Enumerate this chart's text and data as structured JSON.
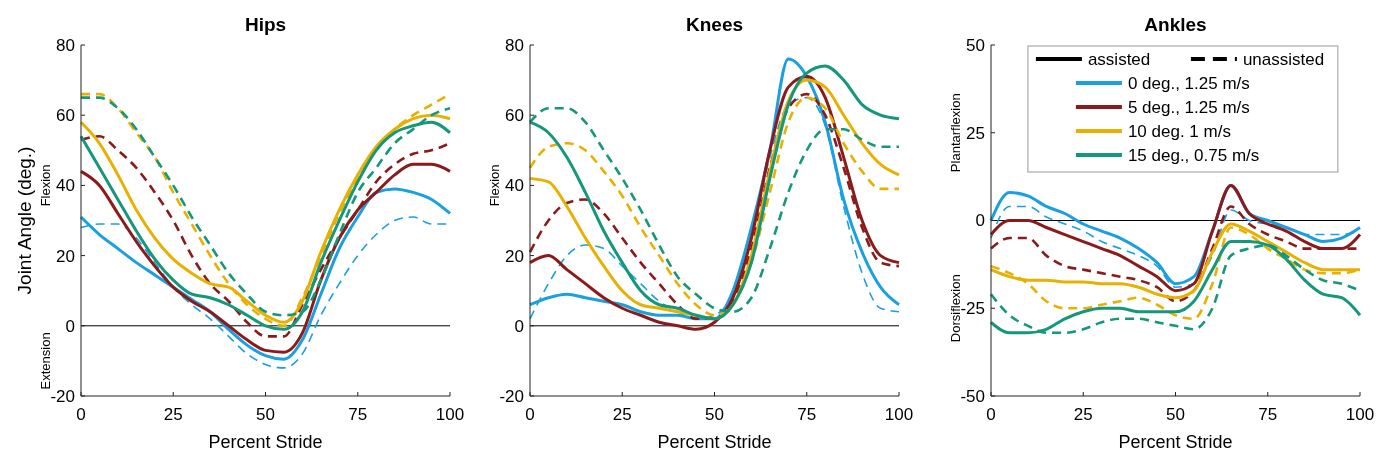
{
  "chart_data": [
    {
      "type": "line",
      "title": "Hips",
      "xlabel": "Percent Stride",
      "ylabel": "Joint Angle (deg.)",
      "annotations": [
        "Flexion",
        "Extension"
      ],
      "x": [
        0,
        5,
        10,
        15,
        20,
        25,
        30,
        35,
        40,
        45,
        50,
        55,
        60,
        65,
        70,
        75,
        80,
        85,
        90,
        95,
        100
      ],
      "xlim": [
        0,
        100
      ],
      "xticks": [
        0,
        25,
        50,
        75,
        100
      ],
      "ylim": [
        -20,
        80
      ],
      "yticks": [
        -20,
        0,
        20,
        40,
        60,
        80
      ],
      "ref_lines": [
        {
          "axis": "y",
          "value": 0,
          "color": "#000000"
        }
      ],
      "series": [
        {
          "color": "#1a9fe0",
          "line_style": "solid",
          "values": [
            31,
            26,
            22,
            18,
            14.5,
            11,
            7.5,
            4,
            -1,
            -5.5,
            -8.5,
            -9.5,
            -4,
            9,
            22,
            31,
            38,
            39,
            38,
            36,
            32
          ]
        },
        {
          "color": "#1a9fe0",
          "line_style": "dashed",
          "values": [
            28,
            29,
            29,
            25,
            18,
            11,
            6,
            2,
            -3,
            -8,
            -11,
            -12,
            -8,
            3,
            12,
            20,
            26,
            30,
            31,
            29,
            29
          ]
        },
        {
          "color": "#8b1a1a",
          "line_style": "solid",
          "values": [
            44,
            40,
            32,
            24,
            17,
            11,
            7,
            4,
            0,
            -4,
            -7,
            -7.5,
            -2,
            13,
            25,
            33,
            38,
            43,
            46,
            46,
            44
          ]
        },
        {
          "color": "#8b1a1a",
          "line_style": "dashed",
          "values": [
            53,
            54,
            50,
            45,
            38,
            30,
            20,
            12,
            7,
            1,
            -3,
            -3,
            6,
            16,
            25,
            33,
            41,
            46,
            49,
            50,
            52
          ]
        },
        {
          "color": "#e8b000",
          "line_style": "solid",
          "values": [
            58,
            52,
            43,
            33,
            25,
            19,
            15,
            12,
            11,
            7,
            3,
            1,
            7,
            21,
            33,
            43,
            51,
            56,
            59,
            60,
            59
          ]
        },
        {
          "color": "#e8b000",
          "line_style": "dashed",
          "values": [
            66,
            66,
            62,
            55,
            48,
            38,
            29,
            20,
            12,
            6,
            2,
            0,
            8,
            20,
            32,
            42,
            50,
            56,
            60,
            63,
            66
          ]
        },
        {
          "color": "#14977a",
          "line_style": "solid",
          "values": [
            54,
            45,
            36,
            27,
            19,
            13,
            9,
            8,
            6,
            3,
            0,
            -1,
            4,
            18,
            30,
            41,
            50,
            55,
            57,
            58,
            55
          ]
        },
        {
          "color": "#14977a",
          "line_style": "dashed",
          "values": [
            65,
            65,
            62,
            56,
            48,
            40,
            31,
            23,
            15,
            9,
            4,
            3,
            4,
            13,
            26,
            38,
            45,
            52,
            56,
            60,
            62
          ]
        }
      ]
    },
    {
      "type": "line",
      "title": "Knees",
      "xlabel": "Percent Stride",
      "annotations": [
        "Flexion"
      ],
      "x": [
        0,
        5,
        10,
        15,
        20,
        25,
        30,
        35,
        40,
        45,
        50,
        55,
        60,
        65,
        70,
        75,
        80,
        85,
        90,
        95,
        100
      ],
      "xlim": [
        0,
        100
      ],
      "xticks": [
        0,
        25,
        50,
        75,
        100
      ],
      "ylim": [
        -20,
        80
      ],
      "yticks": [
        -20,
        0,
        20,
        40,
        60,
        80
      ],
      "ref_lines": [
        {
          "axis": "y",
          "value": 0,
          "color": "#000000"
        }
      ],
      "series": [
        {
          "color": "#1a9fe0",
          "line_style": "solid",
          "values": [
            6,
            8,
            9,
            8,
            7,
            6,
            4,
            3,
            3,
            2,
            2,
            10,
            28,
            50,
            76,
            71,
            58,
            36,
            21,
            11,
            6
          ]
        },
        {
          "color": "#1a9fe0",
          "line_style": "dashed",
          "values": [
            2,
            12,
            20,
            23,
            22,
            17,
            12,
            7,
            4,
            2,
            3,
            9,
            25,
            48,
            63,
            65,
            57,
            34,
            15,
            5,
            4
          ]
        },
        {
          "color": "#8b1a1a",
          "line_style": "solid",
          "values": [
            18,
            20,
            16,
            12,
            8,
            5,
            3,
            1,
            0,
            -1,
            1,
            8,
            25,
            50,
            68,
            71,
            65,
            48,
            30,
            20,
            18
          ]
        },
        {
          "color": "#8b1a1a",
          "line_style": "dashed",
          "values": [
            21,
            30,
            35,
            36,
            32,
            25,
            18,
            12,
            6,
            2,
            2,
            7,
            22,
            45,
            62,
            66,
            60,
            45,
            28,
            18,
            17
          ]
        },
        {
          "color": "#e8b000",
          "line_style": "solid",
          "values": [
            42,
            41,
            34,
            25,
            17,
            10,
            6,
            5,
            4,
            3,
            2,
            6,
            20,
            44,
            64,
            70,
            68,
            60,
            52,
            46,
            43
          ]
        },
        {
          "color": "#e8b000",
          "line_style": "dashed",
          "values": [
            45,
            51,
            52,
            50,
            44,
            37,
            28,
            20,
            12,
            6,
            3,
            6,
            18,
            38,
            58,
            65,
            62,
            52,
            44,
            39,
            39
          ]
        },
        {
          "color": "#14977a",
          "line_style": "solid",
          "values": [
            58,
            55,
            48,
            38,
            27,
            18,
            10,
            6,
            5,
            3,
            2,
            6,
            18,
            42,
            63,
            72,
            74,
            70,
            63,
            60,
            59
          ]
        },
        {
          "color": "#14977a",
          "line_style": "dashed",
          "values": [
            58,
            62,
            62,
            58,
            50,
            42,
            33,
            23,
            14,
            9,
            5,
            4,
            8,
            22,
            38,
            50,
            56,
            56,
            53,
            51,
            51
          ]
        }
      ]
    },
    {
      "type": "line",
      "title": "Ankles",
      "xlabel": "Percent Stride",
      "annotations": [
        "assisted",
        "unassisted",
        "Plantarflexion",
        "Dorsiflexion"
      ],
      "legend": "top right",
      "x": [
        0,
        5,
        10,
        15,
        20,
        25,
        30,
        35,
        40,
        45,
        50,
        55,
        60,
        65,
        70,
        75,
        80,
        85,
        90,
        95,
        100
      ],
      "xlim": [
        0,
        100
      ],
      "xticks": [
        0,
        25,
        50,
        75,
        100
      ],
      "ylim": [
        -50,
        50
      ],
      "yticks": [
        -50,
        -25,
        0,
        25,
        50
      ],
      "ref_lines": [
        {
          "axis": "y",
          "value": 0,
          "color": "#000000"
        }
      ],
      "series": [
        {
          "name": "0 deg., 1.25 m/s",
          "color": "#1a9fe0",
          "line_style": "solid",
          "values": [
            0,
            8,
            7,
            4,
            2,
            -1,
            -3,
            -5,
            -8,
            -12,
            -18,
            -16,
            -3,
            10,
            2,
            0,
            -2,
            -4,
            -6,
            -5,
            -2
          ]
        },
        {
          "color": "#1a9fe0",
          "line_style": "dashed",
          "values": [
            -5,
            4,
            4,
            1,
            -1,
            -3,
            -6,
            -8,
            -10,
            -13,
            -19,
            -18,
            -10,
            3,
            0,
            -1,
            -2,
            -4,
            -4,
            -4,
            -3
          ]
        },
        {
          "name": "5 deg., 1.25 m/s",
          "color": "#8b1a1a",
          "line_style": "solid",
          "values": [
            -4,
            0,
            0,
            -2,
            -4,
            -6,
            -8,
            -10,
            -13,
            -16,
            -20,
            -18,
            -3,
            10,
            2,
            -1,
            -3,
            -6,
            -8,
            -8,
            -4
          ]
        },
        {
          "color": "#8b1a1a",
          "line_style": "dashed",
          "values": [
            -8,
            -5,
            -5,
            -10,
            -13,
            -14,
            -15,
            -16,
            -17,
            -19,
            -23,
            -20,
            -8,
            4,
            -1,
            -4,
            -6,
            -8,
            -8,
            -8,
            -8
          ]
        },
        {
          "name": "10 deg. 1 m/s",
          "color": "#e8b000",
          "line_style": "solid",
          "values": [
            -14,
            -16,
            -17,
            -17,
            -17.5,
            -17.5,
            -18,
            -18,
            -19,
            -21,
            -22,
            -20,
            -9,
            -1,
            -3,
            -6,
            -9,
            -12,
            -14,
            -14,
            -14
          ]
        },
        {
          "color": "#e8b000",
          "line_style": "dashed",
          "values": [
            -13,
            -15,
            -18,
            -23,
            -25,
            -25,
            -24,
            -23,
            -22,
            -24,
            -27,
            -28,
            -18,
            -2,
            -4,
            -8,
            -11,
            -14,
            -15,
            -15,
            -14
          ]
        },
        {
          "name": "15 deg., 0.75 m/s",
          "color": "#14977a",
          "line_style": "solid",
          "values": [
            -29,
            -32,
            -32,
            -31,
            -28,
            -26,
            -25,
            -25,
            -26,
            -26,
            -26,
            -23,
            -14,
            -6,
            -6,
            -7,
            -11,
            -17,
            -21,
            -22,
            -27
          ]
        },
        {
          "color": "#14977a",
          "line_style": "dashed",
          "values": [
            -21,
            -27,
            -30,
            -32,
            -32,
            -31,
            -29,
            -28,
            -28,
            -29,
            -30,
            -31,
            -25,
            -10,
            -8,
            -7,
            -10,
            -14,
            -17,
            -18,
            -20
          ]
        }
      ]
    }
  ]
}
